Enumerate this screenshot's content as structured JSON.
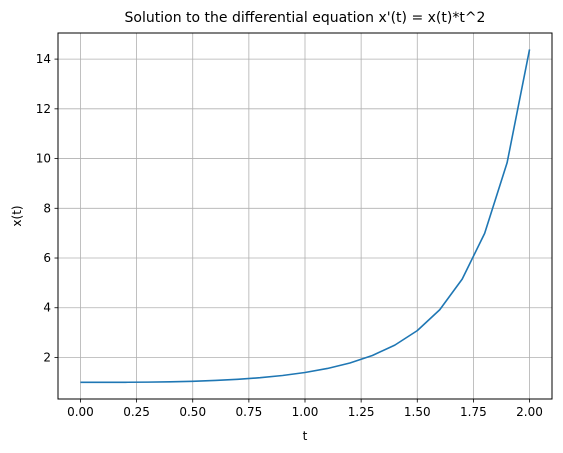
{
  "chart_data": {
    "type": "line",
    "title": "Solution to the differential equation x'(t) = x(t)*t^2",
    "xlabel": "t",
    "ylabel": "x(t)",
    "xlim": [
      -0.1,
      2.1
    ],
    "ylim": [
      0.33,
      15.05
    ],
    "x_ticks": [
      0.0,
      0.25,
      0.5,
      0.75,
      1.0,
      1.25,
      1.5,
      1.75,
      2.0
    ],
    "x_tick_labels": [
      "0.00",
      "0.25",
      "0.50",
      "0.75",
      "1.00",
      "1.25",
      "1.50",
      "1.75",
      "2.00"
    ],
    "y_ticks": [
      2,
      4,
      6,
      8,
      10,
      12,
      14
    ],
    "y_tick_labels": [
      "2",
      "4",
      "6",
      "8",
      "10",
      "12",
      "14"
    ],
    "grid": true,
    "line_color": "#1f77b4",
    "series": [
      {
        "x": [
          0.0,
          0.1,
          0.2,
          0.3,
          0.4,
          0.5,
          0.6,
          0.7,
          0.8,
          0.9,
          1.0,
          1.1,
          1.2,
          1.3,
          1.4,
          1.5,
          1.6,
          1.7,
          1.8,
          1.9,
          2.0
        ],
        "values": [
          1.0,
          1.0,
          1.003,
          1.009,
          1.022,
          1.043,
          1.075,
          1.121,
          1.186,
          1.275,
          1.396,
          1.558,
          1.779,
          2.08,
          2.496,
          3.08,
          3.919,
          5.151,
          6.99,
          9.83,
          14.39
        ]
      }
    ]
  }
}
